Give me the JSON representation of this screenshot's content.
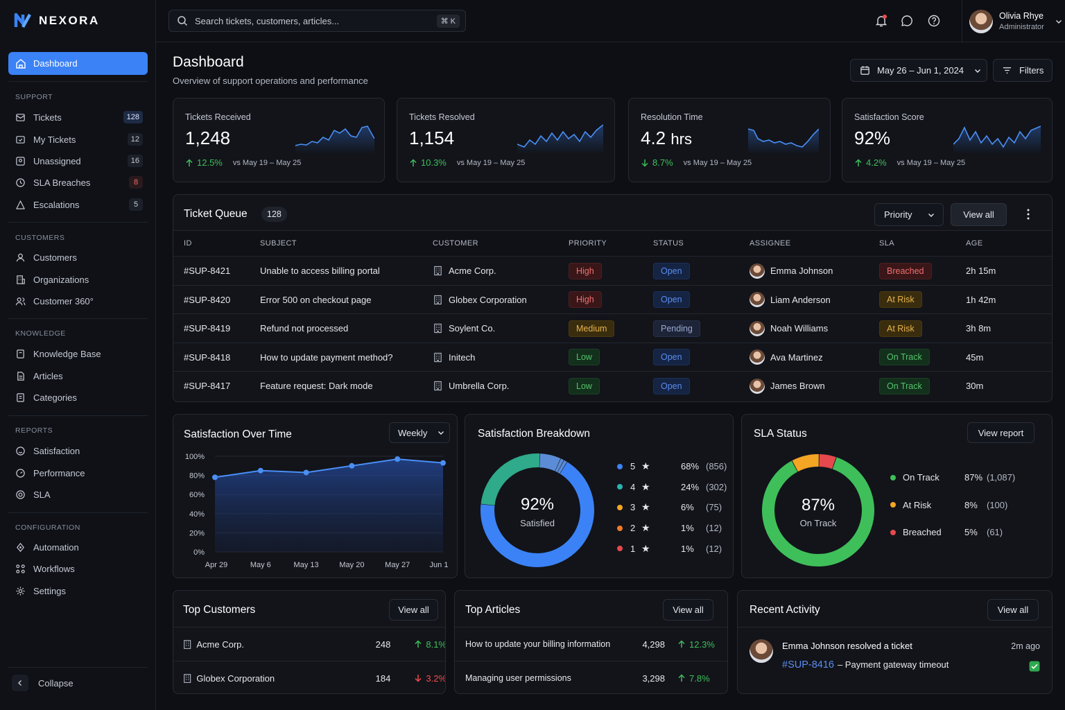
{
  "app": {
    "name": "NEXORA"
  },
  "sidebar": {
    "active": {
      "label": "Dashboard"
    },
    "sections": [
      {
        "title": "SUPPORT",
        "items": [
          {
            "label": "Tickets",
            "count": "128"
          },
          {
            "label": "My Tickets",
            "count": "12"
          },
          {
            "label": "Unassigned",
            "count": "16"
          },
          {
            "label": "SLA Breaches",
            "count": "8"
          },
          {
            "label": "Escalations",
            "count": "5"
          }
        ]
      },
      {
        "title": "CUSTOMERS",
        "items": [
          {
            "label": "Customers"
          },
          {
            "label": "Organizations"
          },
          {
            "label": "Customer 360°"
          }
        ]
      },
      {
        "title": "KNOWLEDGE",
        "items": [
          {
            "label": "Knowledge Base"
          },
          {
            "label": "Articles"
          },
          {
            "label": "Categories"
          }
        ]
      },
      {
        "title": "REPORTS",
        "items": [
          {
            "label": "Satisfaction"
          },
          {
            "label": "Performance"
          },
          {
            "label": "SLA"
          }
        ]
      },
      {
        "title": "CONFIGURATION",
        "items": [
          {
            "label": "Automation"
          },
          {
            "label": "Workflows"
          },
          {
            "label": "Settings"
          }
        ]
      }
    ],
    "collapse": "Collapse"
  },
  "topbar": {
    "search_placeholder": "Search tickets, customers, articles...",
    "shortcut": "⌘ K",
    "user": {
      "name": "Olivia Rhye",
      "role": "Administrator"
    }
  },
  "page": {
    "title": "Dashboard",
    "subtitle": "Overview of support operations and performance",
    "date_range": "May 26 – Jun 1, 2024",
    "filters": "Filters"
  },
  "kpis": [
    {
      "label": "Tickets Received",
      "value": "1,248",
      "change": "12.5%",
      "direction": "up",
      "period": "vs May 19 – May 25"
    },
    {
      "label": "Tickets Resolved",
      "value": "1,154",
      "change": "10.3%",
      "direction": "up",
      "period": "vs May 19 – May 25"
    },
    {
      "label": "Resolution Time",
      "value": "4.2",
      "unit": "hrs",
      "change": "8.7%",
      "direction": "down",
      "period": "vs May 19 – May 25"
    },
    {
      "label": "Satisfaction Score",
      "value": "92%",
      "change": "4.2%",
      "direction": "up",
      "period": "vs May 19 – May 25"
    }
  ],
  "queue": {
    "title": "Ticket Queue",
    "count": "128",
    "priority_filter": "Priority",
    "view_all": "View all",
    "columns": [
      "ID",
      "SUBJECT",
      "CUSTOMER",
      "PRIORITY",
      "STATUS",
      "ASSIGNEE",
      "SLA",
      "AGE"
    ],
    "rows": [
      {
        "id": "#SUP-8421",
        "subject": "Unable to access billing portal",
        "customer": "Acme Corp.",
        "priority": "High",
        "status": "Open",
        "assignee": "Emma Johnson",
        "sla": "Breached",
        "age": "2h 15m"
      },
      {
        "id": "#SUP-8420",
        "subject": "Error 500 on checkout page",
        "customer": "Globex Corporation",
        "priority": "High",
        "status": "Open",
        "assignee": "Liam Anderson",
        "sla": "At Risk",
        "age": "1h 42m"
      },
      {
        "id": "#SUP-8419",
        "subject": "Refund not processed",
        "customer": "Soylent Co.",
        "priority": "Medium",
        "status": "Pending",
        "assignee": "Noah Williams",
        "sla": "At Risk",
        "age": "3h 8m"
      },
      {
        "id": "#SUP-8418",
        "subject": "How to update payment method?",
        "customer": "Initech",
        "priority": "Low",
        "status": "Open",
        "assignee": "Ava Martinez",
        "sla": "On Track",
        "age": "45m"
      },
      {
        "id": "#SUP-8417",
        "subject": "Feature request: Dark mode",
        "customer": "Umbrella Corp.",
        "priority": "Low",
        "status": "Open",
        "assignee": "James Brown",
        "sla": "On Track",
        "age": "30m"
      }
    ]
  },
  "satisfaction_over_time": {
    "title": "Satisfaction Over Time",
    "period": "Weekly"
  },
  "satisfaction_breakdown": {
    "title": "Satisfaction Breakdown",
    "center_value": "92%",
    "center_label": "Satisfied",
    "items": [
      {
        "stars": "5",
        "pct": "68%",
        "count": "(856)",
        "color": "#3b82f6"
      },
      {
        "stars": "4",
        "pct": "24%",
        "count": "(302)",
        "color": "#2bb3b0"
      },
      {
        "stars": "3",
        "pct": "6%",
        "count": "(75)",
        "color": "#f5a524"
      },
      {
        "stars": "2",
        "pct": "1%",
        "count": "(12)",
        "color": "#f07a2a"
      },
      {
        "stars": "1",
        "pct": "1%",
        "count": "(12)",
        "color": "#e5484d"
      }
    ]
  },
  "sla_status": {
    "title": "SLA Status",
    "view_report": "View report",
    "center_value": "87%",
    "center_label": "On Track",
    "items": [
      {
        "label": "On Track",
        "pct": "87%",
        "count": "(1,087)",
        "color": "#3fbf5a"
      },
      {
        "label": "At Risk",
        "pct": "8%",
        "count": "(100)",
        "color": "#f5a524"
      },
      {
        "label": "Breached",
        "pct": "5%",
        "count": "(61)",
        "color": "#e5484d"
      }
    ]
  },
  "top_customers": {
    "title": "Top Customers",
    "view_all": "View all",
    "rows": [
      {
        "name": "Acme Corp.",
        "value": "248",
        "change": "8.1%",
        "direction": "up"
      },
      {
        "name": "Globex Corporation",
        "value": "184",
        "change": "3.2%",
        "direction": "down"
      }
    ]
  },
  "top_articles": {
    "title": "Top Articles",
    "view_all": "View all",
    "rows": [
      {
        "name": "How to update your billing information",
        "value": "4,298",
        "change": "12.3%",
        "direction": "up"
      },
      {
        "name": "Managing user permissions",
        "value": "3,298",
        "change": "7.8%",
        "direction": "up"
      }
    ]
  },
  "recent_activity": {
    "title": "Recent Activity",
    "view_all": "View all",
    "items": [
      {
        "text": "Emma Johnson resolved a ticket",
        "ticket": "#SUP-8416",
        "detail": "– Payment gateway timeout",
        "time": "2m ago"
      }
    ]
  },
  "chart_data": [
    {
      "type": "line",
      "title": "Satisfaction Over Time",
      "x": [
        "Apr 29",
        "May 6",
        "May 13",
        "May 20",
        "May 27",
        "Jun 1"
      ],
      "series": [
        {
          "values": [
            78,
            85,
            83,
            90,
            97,
            93
          ]
        }
      ],
      "yticks": [
        "100%",
        "80%",
        "60%",
        "40%",
        "20%",
        "0%"
      ],
      "ylim": [
        0,
        100
      ],
      "grid": true
    },
    {
      "type": "pie",
      "title": "Satisfaction Breakdown",
      "categories": [
        "5",
        "4",
        "3",
        "2",
        "1"
      ],
      "values": [
        68,
        24,
        6,
        1,
        1
      ]
    },
    {
      "type": "pie",
      "title": "SLA Status",
      "categories": [
        "On Track",
        "At Risk",
        "Breached"
      ],
      "values": [
        87,
        8,
        5
      ]
    }
  ]
}
